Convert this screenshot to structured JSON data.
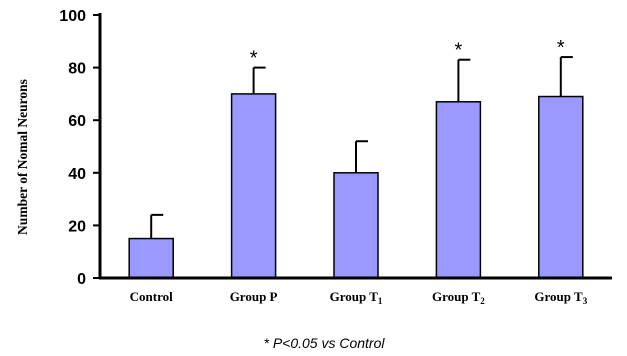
{
  "chart_data": {
    "type": "bar",
    "categories": [
      "Control",
      "Group P",
      "Group T1",
      "Group T2",
      "Group T3"
    ],
    "category_labels": [
      {
        "base": "Control",
        "sub": ""
      },
      {
        "base": "Group P",
        "sub": ""
      },
      {
        "base": "Group T",
        "sub": "1"
      },
      {
        "base": "Group T",
        "sub": "2"
      },
      {
        "base": "Group T",
        "sub": "3"
      }
    ],
    "values": [
      15,
      70,
      40,
      67,
      69
    ],
    "error_upper": [
      24,
      80,
      52,
      83,
      84
    ],
    "significance": [
      "",
      "*",
      "",
      "*",
      "*"
    ],
    "ylabel": "Number of Nomal Neurons",
    "ylim": [
      0,
      100
    ],
    "yticks": [
      0,
      20,
      40,
      60,
      80,
      100
    ],
    "bar_color": "#9999ff",
    "bar_edge_color": "#000000",
    "grid": false,
    "footnote": "* P<0.05 vs Control"
  }
}
